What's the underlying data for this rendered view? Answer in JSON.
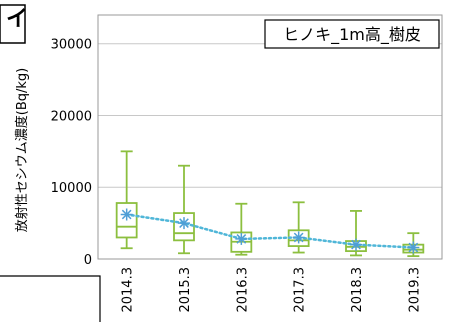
{
  "chart_data": {
    "type": "box",
    "legend_label": "ヒノキ_1m高_樹皮",
    "ylabel": "放射性セシウム濃度(Bq/kg)",
    "ylim": [
      0,
      34000
    ],
    "yticks": [
      0,
      10000,
      20000,
      30000
    ],
    "grid": true,
    "legend_position": "top-right",
    "categories": [
      "2014.3",
      "2015.3",
      "2016.3",
      "2017.3",
      "2018.3",
      "2019.3"
    ],
    "boxes": [
      {
        "min": 1500,
        "q1": 3000,
        "median": 4500,
        "q3": 7800,
        "max": 15000,
        "mean": 6200
      },
      {
        "min": 800,
        "q1": 2600,
        "median": 3600,
        "q3": 6400,
        "max": 13000,
        "mean": 5000
      },
      {
        "min": 600,
        "q1": 1000,
        "median": 2400,
        "q3": 3700,
        "max": 7700,
        "mean": 2800
      },
      {
        "min": 900,
        "q1": 1800,
        "median": 2600,
        "q3": 4000,
        "max": 7900,
        "mean": 3000
      },
      {
        "min": 500,
        "q1": 1100,
        "median": 1700,
        "q3": 2500,
        "max": 6700,
        "mean": 2000
      },
      {
        "min": 400,
        "q1": 900,
        "median": 1300,
        "q3": 2000,
        "max": 3600,
        "mean": 1600
      }
    ],
    "colors": {
      "box": "#8cbf3f",
      "mean_marker": "#4f9fd6",
      "mean_line": "#4fb6d8",
      "grid": "#c8c8c8"
    }
  }
}
